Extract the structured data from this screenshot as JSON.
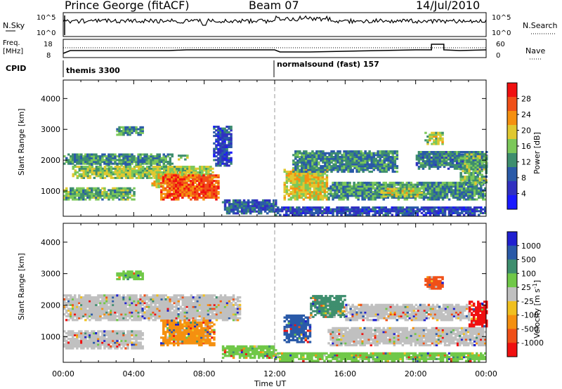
{
  "header": {
    "station": "Prince George (fitACF)",
    "beam": "Beam 07",
    "date": "14/Jul/2010"
  },
  "labels": {
    "nsky": "N.Sky",
    "nsky_hi": "10^5",
    "nsky_lo": "10^0",
    "nsearch": "N.Search",
    "nsearch_hi": "10^5",
    "nsearch_lo": "10^0",
    "freq": "Freq.",
    "freq_unit": "[MHz]",
    "freq_hi": "18",
    "freq_lo": "8",
    "nave": "Nave",
    "nave_hi": "60",
    "nave_lo": "0",
    "cpid": "CPID",
    "cpid1": "themis 3300",
    "cpid2": "normalsound (fast) 157",
    "power_axis": "Power [dB]",
    "velocity_axis": "Velocity [m s",
    "velocity_sup": "-1",
    "velocity_axis_end": "]",
    "slant_range": "Slant Range [km]",
    "time_axis": "Time UT"
  },
  "chart_data": [
    {
      "type": "heatmap",
      "name": "power",
      "xlabel": "Time UT",
      "ylabel": "Slant Range [km]",
      "x_ticks": [
        "00:00",
        "04:00",
        "08:00",
        "12:00",
        "16:00",
        "20:00",
        "00:00"
      ],
      "xlim_hours": [
        0,
        24
      ],
      "y_ticks": [
        1000,
        2000,
        3000,
        4000
      ],
      "ylim_km": [
        180,
        4600
      ],
      "colorbar": {
        "label": "Power [dB]",
        "ticks": [
          4,
          8,
          12,
          16,
          20,
          24,
          28
        ],
        "range": [
          0,
          32
        ],
        "colors": [
          "#1a1aff",
          "#3030c0",
          "#2a5aa8",
          "#3e8e6e",
          "#7cc85a",
          "#e0c830",
          "#f59010",
          "#f05018",
          "#f01010"
        ]
      },
      "regions": [
        {
          "t0": 0.0,
          "t1": 6.2,
          "r0": 1800,
          "r1": 2200,
          "level": 12
        },
        {
          "t0": 0.0,
          "t1": 4.0,
          "r0": 700,
          "r1": 1100,
          "level": 14
        },
        {
          "t0": 0.5,
          "t1": 8.5,
          "r0": 1400,
          "r1": 1800,
          "level": 17
        },
        {
          "t0": 5.0,
          "t1": 7.0,
          "r0": 1100,
          "r1": 1600,
          "level": 20
        },
        {
          "t0": 5.5,
          "t1": 8.8,
          "r0": 700,
          "r1": 1500,
          "level": 27
        },
        {
          "t0": 3.0,
          "t1": 4.5,
          "r0": 2800,
          "r1": 3100,
          "level": 12
        },
        {
          "t0": 6.5,
          "t1": 7.0,
          "r0": 2000,
          "r1": 2150,
          "level": 16
        },
        {
          "t0": 8.5,
          "t1": 9.5,
          "r0": 1800,
          "r1": 3100,
          "level": 6
        },
        {
          "t0": 9.0,
          "t1": 12.0,
          "r0": 250,
          "r1": 700,
          "level": 8
        },
        {
          "t0": 12.5,
          "t1": 15.0,
          "r0": 700,
          "r1": 1700,
          "level": 20
        },
        {
          "t0": 13.0,
          "t1": 19.0,
          "r0": 1600,
          "r1": 2300,
          "level": 11
        },
        {
          "t0": 15.0,
          "t1": 24.0,
          "r0": 700,
          "r1": 1300,
          "level": 12
        },
        {
          "t0": 18.0,
          "t1": 20.5,
          "r0": 800,
          "r1": 1100,
          "level": 18
        },
        {
          "t0": 20.0,
          "t1": 24.0,
          "r0": 1700,
          "r1": 2300,
          "level": 10
        },
        {
          "t0": 20.5,
          "t1": 21.5,
          "r0": 2500,
          "r1": 2900,
          "level": 18
        },
        {
          "t0": 22.5,
          "t1": 24.0,
          "r0": 1200,
          "r1": 2200,
          "level": 14
        },
        {
          "t0": 12.0,
          "t1": 24.0,
          "r0": 200,
          "r1": 500,
          "level": 6
        }
      ]
    },
    {
      "type": "heatmap",
      "name": "velocity",
      "xlabel": "Time UT",
      "ylabel": "Slant Range [km]",
      "x_ticks": [
        "00:00",
        "04:00",
        "08:00",
        "12:00",
        "16:00",
        "20:00",
        "00:00"
      ],
      "xlim_hours": [
        0,
        24
      ],
      "y_ticks": [
        1000,
        2000,
        3000,
        4000
      ],
      "ylim_km": [
        180,
        4600
      ],
      "colorbar": {
        "label": "Velocity [m s-1]",
        "ticks": [
          "1000",
          "500",
          "100",
          "25",
          "-25",
          "-100",
          "-500",
          "-1000"
        ],
        "colors": [
          "#2020d0",
          "#2a5aa8",
          "#3e8e6e",
          "#70c848",
          "#c0c0c0",
          "#f0c020",
          "#f59010",
          "#f05018",
          "#f01010"
        ]
      },
      "regions": [
        {
          "t0": 0.0,
          "t1": 10.0,
          "r0": 1500,
          "r1": 2300,
          "color": "#c0c0c0"
        },
        {
          "t0": 0.0,
          "t1": 4.5,
          "r0": 600,
          "r1": 1200,
          "color": "#c0c0c0"
        },
        {
          "t0": 5.5,
          "t1": 8.5,
          "r0": 700,
          "r1": 1500,
          "color": "#f59010"
        },
        {
          "t0": 3.0,
          "t1": 4.5,
          "r0": 2800,
          "r1": 3100,
          "color": "#70c848"
        },
        {
          "t0": 9.0,
          "t1": 12.0,
          "r0": 300,
          "r1": 700,
          "color": "#70c848"
        },
        {
          "t0": 12.5,
          "t1": 14.0,
          "r0": 800,
          "r1": 1700,
          "color": "#2a5aa8"
        },
        {
          "t0": 14.0,
          "t1": 16.0,
          "r0": 1600,
          "r1": 2300,
          "color": "#3e8e6e"
        },
        {
          "t0": 15.0,
          "t1": 24.0,
          "r0": 700,
          "r1": 1300,
          "color": "#c0c0c0"
        },
        {
          "t0": 16.0,
          "t1": 23.0,
          "r0": 1500,
          "r1": 2000,
          "color": "#c0c0c0"
        },
        {
          "t0": 20.5,
          "t1": 21.5,
          "r0": 2500,
          "r1": 2900,
          "color": "#f05018"
        },
        {
          "t0": 23.0,
          "t1": 24.0,
          "r0": 1300,
          "r1": 2100,
          "color": "#f01010"
        },
        {
          "t0": 12.0,
          "t1": 24.0,
          "r0": 200,
          "r1": 500,
          "color": "#70c848"
        }
      ]
    }
  ]
}
